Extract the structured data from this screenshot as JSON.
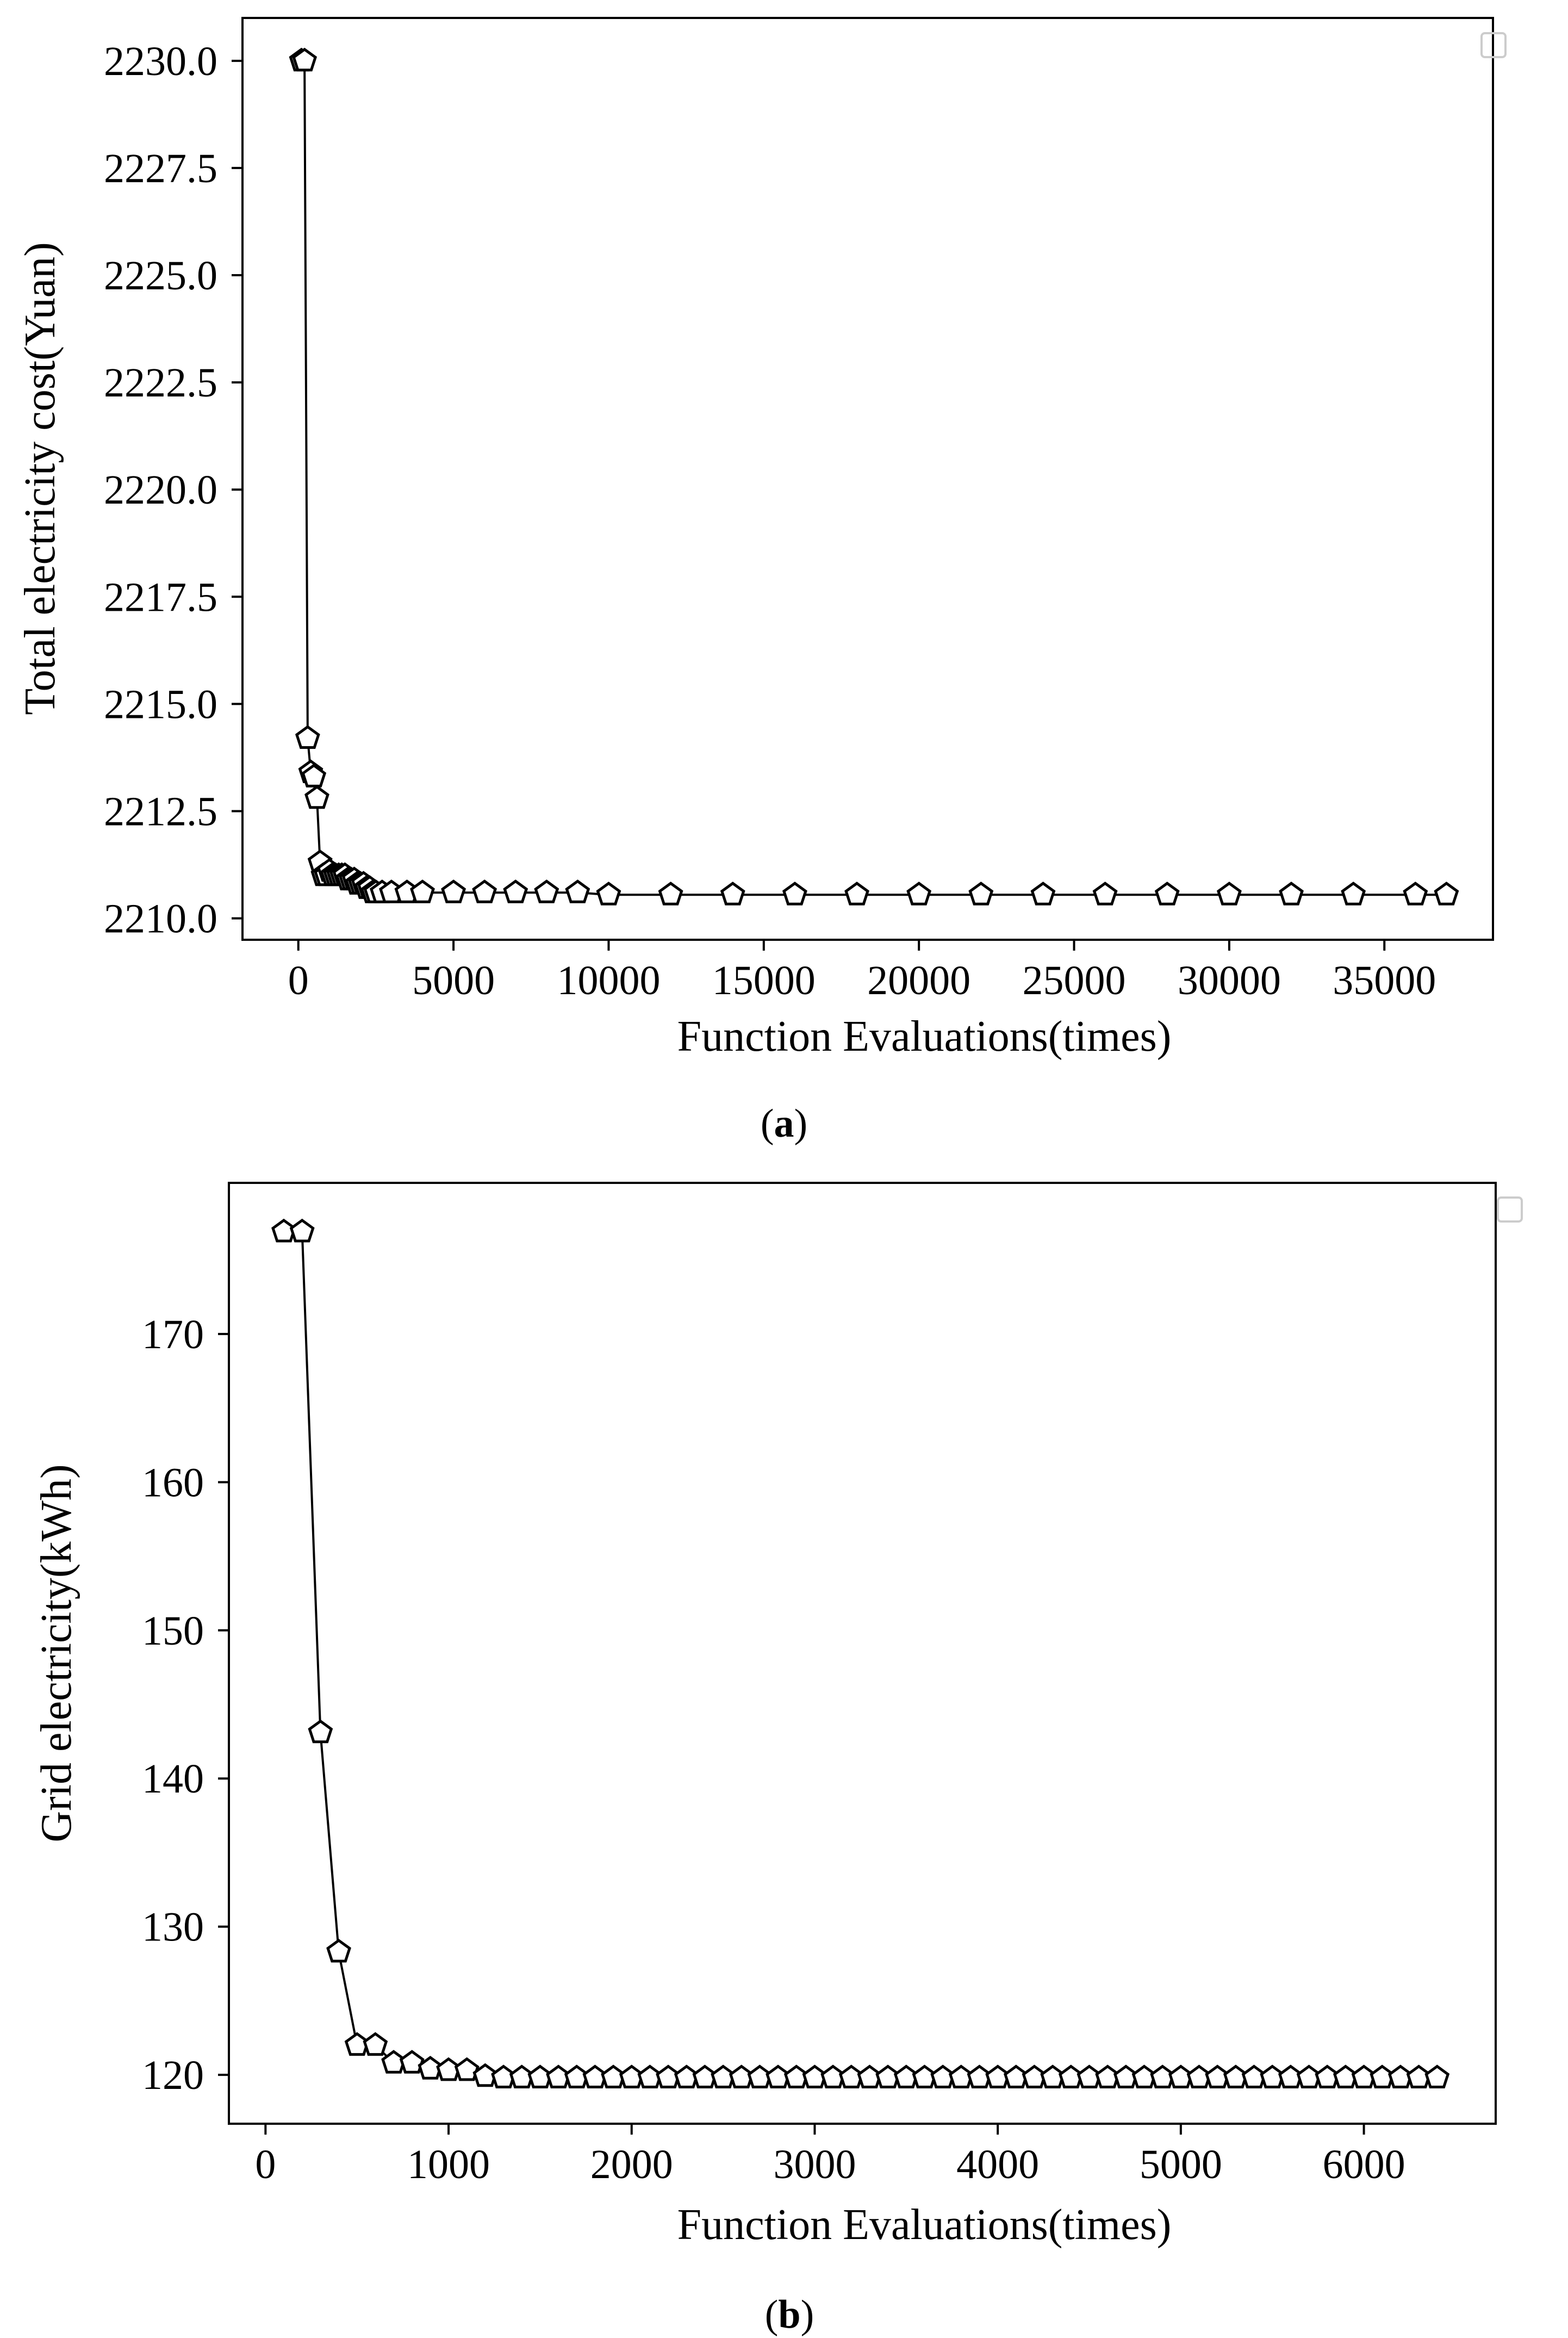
{
  "colors": {
    "line": "#000000",
    "marker_fill": "#ffffff",
    "background": "#ffffff"
  },
  "chart_data": [
    {
      "type": "line",
      "panel": "a",
      "caption": {
        "open": "(",
        "letter": "a",
        "close": ")"
      },
      "title": "",
      "xlabel": "Function Evaluations(times)",
      "ylabel": "Total electricity cost(Yuan)",
      "xlim": [
        -1800,
        38500
      ],
      "ylim": [
        2209.5,
        2231.0
      ],
      "xticks": [
        0,
        5000,
        10000,
        15000,
        20000,
        25000,
        30000,
        35000
      ],
      "xtick_labels": [
        "0",
        "5000",
        "10000",
        "15000",
        "20000",
        "25000",
        "30000",
        "35000"
      ],
      "yticks": [
        2210.0,
        2212.5,
        2215.0,
        2217.5,
        2220.0,
        2222.5,
        2225.0,
        2227.5,
        2230.0
      ],
      "ytick_labels": [
        "2210.0",
        "2212.5",
        "2215.0",
        "2217.5",
        "2220.0",
        "2222.5",
        "2225.0",
        "2227.5",
        "2230.0"
      ],
      "marker": "pentagon",
      "legend": "top-right (empty)",
      "grid": false,
      "series": [
        {
          "x": [
            100,
            200,
            300,
            400,
            500,
            600,
            700,
            800,
            900,
            1000,
            1100,
            1200,
            1300,
            1400,
            1500,
            1600,
            1700,
            1800,
            1900,
            2000,
            2100,
            2200,
            2300,
            2400,
            2500,
            2700,
            3000,
            3500,
            4000,
            5000,
            6000,
            7000,
            8000,
            9000,
            10000,
            12000,
            14000,
            16000,
            18000,
            20000,
            22000,
            24000,
            26000,
            28000,
            30000,
            32000,
            34000,
            36000,
            37000
          ],
          "y": [
            2230.0,
            2230.0,
            2214.2,
            2213.4,
            2213.3,
            2212.8,
            2211.3,
            2211.0,
            2211.0,
            2211.1,
            2211.0,
            2211.0,
            2211.0,
            2211.0,
            2211.0,
            2210.9,
            2210.9,
            2210.9,
            2210.8,
            2210.8,
            2210.8,
            2210.7,
            2210.7,
            2210.6,
            2210.6,
            2210.6,
            2210.6,
            2210.6,
            2210.6,
            2210.6,
            2210.6,
            2210.6,
            2210.6,
            2210.6,
            2210.55,
            2210.55,
            2210.55,
            2210.55,
            2210.55,
            2210.55,
            2210.55,
            2210.55,
            2210.55,
            2210.55,
            2210.55,
            2210.55,
            2210.55,
            2210.55,
            2210.55
          ]
        }
      ]
    },
    {
      "type": "line",
      "panel": "b",
      "caption": {
        "open": "(",
        "letter": "b",
        "close": ")"
      },
      "title": "",
      "xlabel": "Function Evaluations(times)",
      "ylabel": "Grid electricity(kWh)",
      "xlim": [
        -200,
        6720
      ],
      "ylim": [
        116.7,
        180.2
      ],
      "xticks": [
        0,
        1000,
        2000,
        3000,
        4000,
        5000,
        6000
      ],
      "xtick_labels": [
        "0",
        "1000",
        "2000",
        "3000",
        "4000",
        "5000",
        "6000"
      ],
      "yticks": [
        120,
        130,
        140,
        150,
        160,
        170
      ],
      "ytick_labels": [
        "120",
        "130",
        "140",
        "150",
        "160",
        "170"
      ],
      "marker": "pentagon",
      "legend": "top-right (empty)",
      "grid": false,
      "series": [
        {
          "x": [
            100,
            200,
            300,
            400,
            500,
            600,
            700,
            800,
            900,
            1000,
            1100,
            1200,
            1300,
            1400,
            1500,
            1600,
            1700,
            1800,
            1900,
            2000,
            2100,
            2200,
            2300,
            2400,
            2500,
            2600,
            2700,
            2800,
            2900,
            3000,
            3100,
            3200,
            3300,
            3400,
            3500,
            3600,
            3700,
            3800,
            3900,
            4000,
            4100,
            4200,
            4300,
            4400,
            4500,
            4600,
            4700,
            4800,
            4900,
            5000,
            5100,
            5200,
            5300,
            5400,
            5500,
            5600,
            5700,
            5800,
            5900,
            6000,
            6100,
            6200,
            6300,
            6400
          ],
          "y": [
            176.9,
            176.9,
            143.1,
            128.3,
            122.0,
            122.0,
            120.8,
            120.8,
            120.4,
            120.3,
            120.3,
            119.9,
            119.8,
            119.8,
            119.8,
            119.8,
            119.8,
            119.8,
            119.8,
            119.8,
            119.8,
            119.8,
            119.8,
            119.8,
            119.8,
            119.8,
            119.8,
            119.8,
            119.8,
            119.8,
            119.8,
            119.8,
            119.8,
            119.8,
            119.8,
            119.8,
            119.8,
            119.8,
            119.8,
            119.8,
            119.8,
            119.8,
            119.8,
            119.8,
            119.8,
            119.8,
            119.8,
            119.8,
            119.8,
            119.8,
            119.8,
            119.8,
            119.8,
            119.8,
            119.8,
            119.8,
            119.8,
            119.8,
            119.8,
            119.8,
            119.8,
            119.8,
            119.8,
            119.8
          ]
        }
      ]
    }
  ]
}
